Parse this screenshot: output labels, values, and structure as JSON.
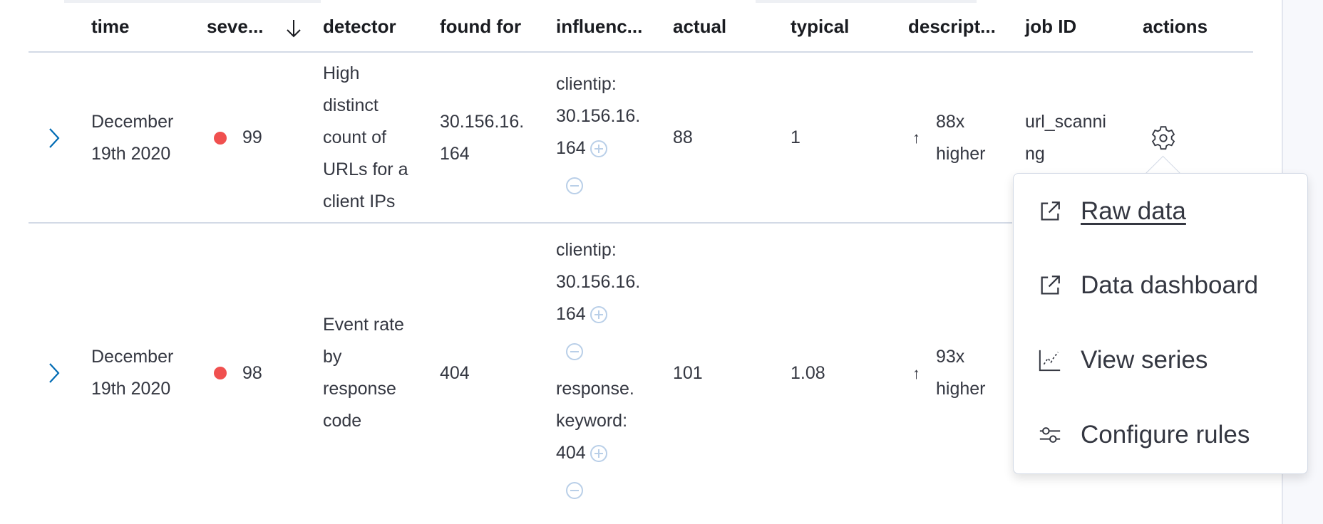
{
  "table": {
    "columns": {
      "time": "time",
      "severity": "seve...",
      "detector": "detector",
      "found_for": "found for",
      "influencers": "influenc...",
      "actual": "actual",
      "typical": "typical",
      "description": "descript...",
      "job_id": "job ID",
      "actions": "actions"
    },
    "sort": {
      "column": "severity",
      "direction": "descending",
      "icon": "arrow-down-icon"
    },
    "rows": [
      {
        "time": [
          "December",
          "19th 2020"
        ],
        "severity": "99",
        "severity_color": "#f0504f",
        "detector": [
          "High",
          "distinct",
          "count of",
          "URLs for a",
          "client IPs"
        ],
        "found_for": [
          "30.156.16.",
          "164"
        ],
        "influencers": [
          {
            "lines": [
              "clientip:",
              "30.156.16."
            ],
            "last": "164"
          }
        ],
        "actual": "88",
        "typical": "1",
        "description": [
          "88x",
          "higher"
        ],
        "job_id": [
          "url_scanni",
          "ng"
        ]
      },
      {
        "time": [
          "December",
          "19th 2020"
        ],
        "severity": "98",
        "severity_color": "#f0504f",
        "detector": [
          "Event rate",
          "by",
          "response",
          "code"
        ],
        "found_for": [
          "404"
        ],
        "influencers": [
          {
            "lines": [
              "clientip:",
              "30.156.16."
            ],
            "last": "164"
          },
          {
            "lines": [
              "response.",
              "keyword:"
            ],
            "last": "404"
          }
        ],
        "actual": "101",
        "typical": "1.08",
        "description": [
          "93x",
          "higher"
        ],
        "job_id": []
      }
    ]
  },
  "actions_menu": {
    "items": [
      {
        "label": "Raw data",
        "icon": "external-link-icon"
      },
      {
        "label": "Data dashboard",
        "icon": "external-link-icon"
      },
      {
        "label": "View series",
        "icon": "chart-line-icon"
      },
      {
        "label": "Configure rules",
        "icon": "controls-sliders-icon"
      }
    ]
  },
  "colors": {
    "accent": "#006bb4",
    "severity_critical": "#f0504f",
    "text": "#343741"
  }
}
